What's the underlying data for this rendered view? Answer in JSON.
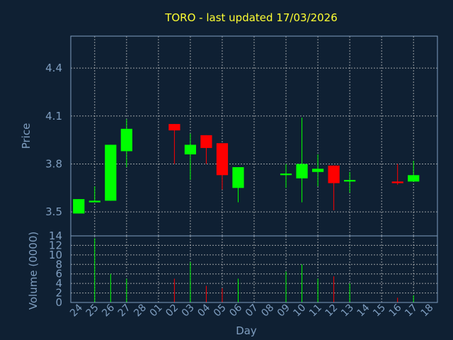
{
  "chart_data": {
    "type": "candlestick",
    "title": "TORO - last updated 17/03/2026",
    "xlabel": "Day",
    "price_panel": {
      "ylabel": "Price",
      "ylim": [
        3.35,
        4.6
      ],
      "yticks": [
        "3.5",
        "3.8",
        "4.1",
        "4.4"
      ],
      "ytick_values": [
        3.5,
        3.8,
        4.1,
        4.4
      ]
    },
    "volume_panel": {
      "ylabel": "Volume (0000)",
      "ylim": [
        0,
        14
      ],
      "yticks": [
        "0",
        "2",
        "4",
        "6",
        "8",
        "10",
        "12",
        "14"
      ],
      "ytick_values": [
        0,
        2,
        4,
        6,
        8,
        10,
        12,
        14
      ]
    },
    "x_labels": [
      "24",
      "25",
      "26",
      "27",
      "28",
      "01",
      "02",
      "03",
      "04",
      "05",
      "06",
      "07",
      "08",
      "09",
      "10",
      "11",
      "12",
      "13",
      "14",
      "15",
      "16",
      "17",
      "18"
    ],
    "grid": true,
    "colors": {
      "up": "#00ff00",
      "down": "#ff0000",
      "background": "#0f2033",
      "plot_bg": "#0f2033",
      "axis": "#7f9ec0",
      "title": "#ffff33"
    },
    "candles": [
      {
        "day": "24",
        "open": 3.49,
        "high": 3.58,
        "low": 3.49,
        "close": 3.58,
        "volume": 0
      },
      {
        "day": "25",
        "open": 3.56,
        "high": 3.66,
        "low": 3.56,
        "close": 3.57,
        "volume": 13.5
      },
      {
        "day": "26",
        "open": 3.57,
        "high": 3.92,
        "low": 3.57,
        "close": 3.92,
        "volume": 6
      },
      {
        "day": "27",
        "open": 3.88,
        "high": 4.08,
        "low": 3.78,
        "close": 4.02,
        "volume": 5
      },
      {
        "day": "02",
        "open": 4.05,
        "high": 4.05,
        "low": 3.8,
        "close": 4.01,
        "volume": 5
      },
      {
        "day": "03",
        "open": 3.86,
        "high": 3.99,
        "low": 3.7,
        "close": 3.92,
        "volume": 8.5
      },
      {
        "day": "04",
        "open": 3.98,
        "high": 3.98,
        "low": 3.8,
        "close": 3.9,
        "volume": 3.5
      },
      {
        "day": "05",
        "open": 3.93,
        "high": 3.93,
        "low": 3.64,
        "close": 3.73,
        "volume": 3
      },
      {
        "day": "06",
        "open": 3.65,
        "high": 3.78,
        "low": 3.56,
        "close": 3.78,
        "volume": 5
      },
      {
        "day": "09",
        "open": 3.73,
        "high": 3.8,
        "low": 3.65,
        "close": 3.74,
        "volume": 6.5
      },
      {
        "day": "10",
        "open": 3.71,
        "high": 4.09,
        "low": 3.56,
        "close": 3.8,
        "volume": 8
      },
      {
        "day": "11",
        "open": 3.75,
        "high": 3.86,
        "low": 3.66,
        "close": 3.77,
        "volume": 5
      },
      {
        "day": "12",
        "open": 3.79,
        "high": 3.79,
        "low": 3.51,
        "close": 3.68,
        "volume": 5.5
      },
      {
        "day": "13",
        "open": 3.69,
        "high": 3.75,
        "low": 3.62,
        "close": 3.7,
        "volume": 4
      },
      {
        "day": "16",
        "open": 3.69,
        "high": 3.8,
        "low": 3.67,
        "close": 3.68,
        "volume": 1
      },
      {
        "day": "17",
        "open": 3.69,
        "high": 3.82,
        "low": 3.69,
        "close": 3.73,
        "volume": 1.5
      }
    ]
  }
}
